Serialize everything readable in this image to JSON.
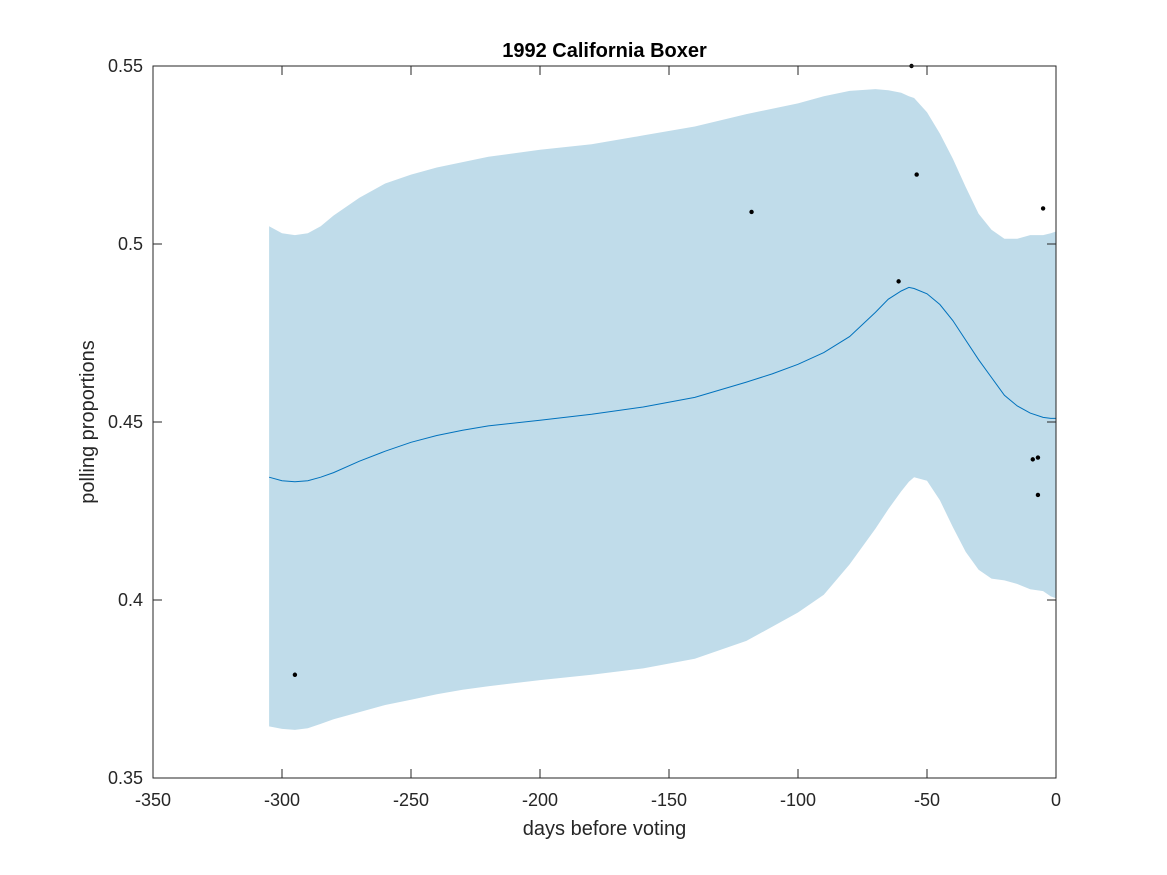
{
  "chart_data": {
    "type": "line",
    "title": "1992 California Boxer",
    "xlabel": "days before voting",
    "ylabel": "polling proportions",
    "xlim": [
      -350,
      0
    ],
    "ylim": [
      0.35,
      0.55
    ],
    "xticks": [
      -350,
      -300,
      -250,
      -200,
      -150,
      -100,
      -50,
      0
    ],
    "xtick_labels": [
      "-350",
      "-300",
      "-250",
      "-200",
      "-150",
      "-100",
      "-50",
      "0"
    ],
    "yticks": [
      0.35,
      0.4,
      0.45,
      0.5,
      0.55
    ],
    "ytick_labels": [
      "0.35",
      "0.4",
      "0.45",
      "0.5",
      "0.55"
    ],
    "grid": false,
    "colors": {
      "band": "#c0dcea",
      "line": "#0072bd",
      "points": "#000000",
      "axes": "#262626"
    },
    "series": [
      {
        "kind": "band",
        "x": [
          -305,
          -300,
          -295,
          -290,
          -285,
          -280,
          -270,
          -260,
          -250,
          -240,
          -230,
          -220,
          -200,
          -180,
          -160,
          -140,
          -120,
          -110,
          -100,
          -90,
          -80,
          -70,
          -65,
          -60,
          -57,
          -55,
          -50,
          -45,
          -40,
          -35,
          -30,
          -25,
          -20,
          -15,
          -10,
          -5,
          -2,
          0
        ],
        "upper": [
          0.505,
          0.503,
          0.5025,
          0.503,
          0.505,
          0.508,
          0.513,
          0.517,
          0.5195,
          0.5215,
          0.523,
          0.5245,
          0.5265,
          0.528,
          0.5305,
          0.533,
          0.5365,
          0.538,
          0.5395,
          0.5415,
          0.543,
          0.5435,
          0.5432,
          0.5425,
          0.5415,
          0.541,
          0.537,
          0.531,
          0.524,
          0.516,
          0.5085,
          0.504,
          0.5015,
          0.5015,
          0.5025,
          0.5025,
          0.503,
          0.5035
        ],
        "lower": [
          0.3645,
          0.3638,
          0.3635,
          0.364,
          0.3652,
          0.3665,
          0.3685,
          0.3705,
          0.372,
          0.3735,
          0.3748,
          0.3758,
          0.3775,
          0.379,
          0.3808,
          0.3835,
          0.3885,
          0.3925,
          0.3965,
          0.4015,
          0.41,
          0.42,
          0.4255,
          0.4305,
          0.4332,
          0.4345,
          0.4335,
          0.428,
          0.4205,
          0.4135,
          0.4085,
          0.406,
          0.4055,
          0.4045,
          0.403,
          0.4025,
          0.401,
          0.4005
        ]
      },
      {
        "kind": "line",
        "x": [
          -305,
          -300,
          -295,
          -290,
          -285,
          -280,
          -270,
          -260,
          -250,
          -240,
          -230,
          -220,
          -200,
          -180,
          -160,
          -140,
          -120,
          -110,
          -100,
          -90,
          -80,
          -70,
          -65,
          -60,
          -57,
          -55,
          -50,
          -45,
          -40,
          -35,
          -30,
          -25,
          -20,
          -15,
          -10,
          -5,
          -2,
          0
        ],
        "y": [
          0.4345,
          0.4335,
          0.4332,
          0.4335,
          0.4345,
          0.4358,
          0.439,
          0.4418,
          0.4443,
          0.4462,
          0.4477,
          0.4489,
          0.4505,
          0.4522,
          0.4542,
          0.4569,
          0.4612,
          0.4635,
          0.4662,
          0.4695,
          0.474,
          0.4808,
          0.4845,
          0.4868,
          0.4878,
          0.4875,
          0.486,
          0.483,
          0.4785,
          0.473,
          0.4675,
          0.4625,
          0.4575,
          0.4545,
          0.4525,
          0.4513,
          0.451,
          0.451
        ]
      },
      {
        "kind": "scatter",
        "x": [
          -295,
          -118,
          -61,
          -56,
          -54,
          -9,
          -7,
          -7,
          -5
        ],
        "y": [
          0.379,
          0.509,
          0.4895,
          0.55,
          0.5195,
          0.4395,
          0.44,
          0.4295,
          0.51
        ]
      }
    ]
  }
}
